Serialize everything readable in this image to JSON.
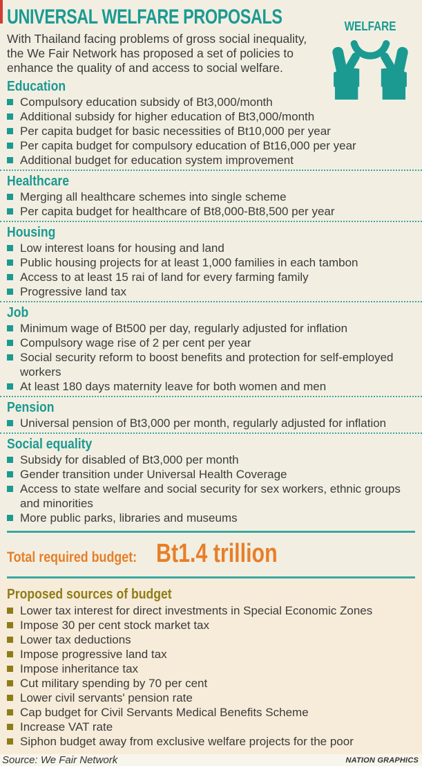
{
  "header": {
    "title": "UNIVERSAL WELFARE PROPOSALS",
    "intro": "With Thailand facing problems of gross social inequality, the We Fair Network has proposed a set of policies to enhance the quality of and access to social welfare.",
    "badge_label": "WELFARE",
    "badge_icon": "hands-holding-icon"
  },
  "sections": [
    {
      "heading": "Education",
      "items": [
        "Compulsory education subsidy of Bt3,000/month",
        "Additional subsidy for higher education of Bt3,000/month",
        "Per capita budget for basic necessities of Bt10,000 per year",
        "Per capita budget for compulsory education of Bt16,000 per year",
        "Additional budget for education system improvement"
      ]
    },
    {
      "heading": "Healthcare",
      "items": [
        "Merging all healthcare schemes into single scheme",
        "Per capita budget for healthcare of Bt8,000-Bt8,500 per year"
      ]
    },
    {
      "heading": "Housing",
      "items": [
        "Low interest loans for housing and land",
        "Public housing projects for at least 1,000 families in each tambon",
        "Access to at least 15 rai of land for every farming family",
        "Progressive land tax"
      ]
    },
    {
      "heading": "Job",
      "items": [
        "Minimum wage of Bt500 per day, regularly adjusted for inflation",
        "Compulsory wage rise of 2 per cent per year",
        "Social security reform to boost benefits and protection for self-employed workers",
        "At least 180 days maternity leave for both women and men"
      ]
    },
    {
      "heading": "Pension",
      "items": [
        "Universal pension of Bt3,000 per month, regularly adjusted for inflation"
      ]
    },
    {
      "heading": "Social equality",
      "items": [
        "Subsidy for disabled of Bt3,000 per month",
        "Gender transition under Universal Health Coverage",
        "Access to state welfare and social security for sex workers, ethnic groups and minorities",
        "More public parks, libraries and museums"
      ]
    }
  ],
  "total_budget": {
    "label": "Total required budget:",
    "value": "Bt1.4 trillion"
  },
  "budget_sources": {
    "heading": "Proposed sources of budget",
    "items": [
      "Lower tax interest for direct investments in Special Economic Zones",
      "Impose 30 per cent stock market tax",
      "Lower tax deductions",
      "Impose progressive land tax",
      "Impose inheritance tax",
      "Cut military spending by 70 per cent",
      "Lower civil servants' pension rate",
      "Cap budget for Civil Servants Medical Benefits Scheme",
      "Increase VAT rate",
      "Siphon budget away from exclusive welfare projects for the poor"
    ]
  },
  "footer": {
    "source": "Source: We Fair Network",
    "credit": "NATION GRAPHICS"
  },
  "colors": {
    "accent_teal": "#1b9a92",
    "accent_orange": "#e87e28",
    "accent_olive": "#8e7c17",
    "edge_red": "#d13c33",
    "background": "#f2efe2",
    "panel_background": "#f7ecd9",
    "footer_background": "#f8f6ec",
    "text": "#3b3b3b"
  }
}
